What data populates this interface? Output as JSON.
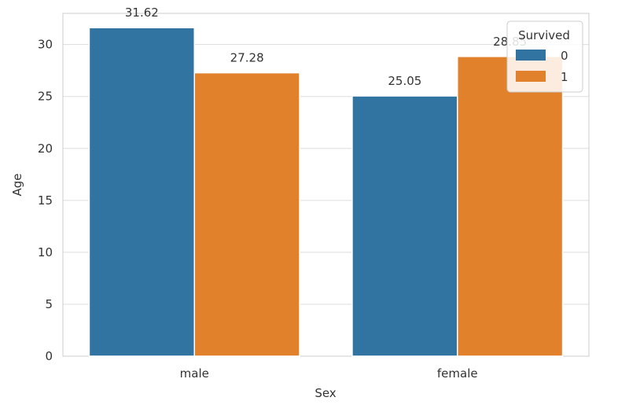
{
  "chart_data": {
    "type": "bar",
    "title": "",
    "xlabel": "Sex",
    "ylabel": "Age",
    "categories": [
      "male",
      "female"
    ],
    "series": [
      {
        "name": "0",
        "values": [
          31.62,
          25.05
        ],
        "color": "#3274a1"
      },
      {
        "name": "1",
        "values": [
          27.28,
          28.85
        ],
        "color": "#e1812c"
      }
    ],
    "data_labels": [
      [
        "31.62",
        "25.05"
      ],
      [
        "27.28",
        "28.85"
      ]
    ],
    "ylim": [
      0,
      33
    ],
    "yticks": [
      0,
      5,
      10,
      15,
      20,
      25,
      30
    ],
    "grid": true,
    "legend": {
      "title": "Survived",
      "placement": "top-right"
    }
  }
}
